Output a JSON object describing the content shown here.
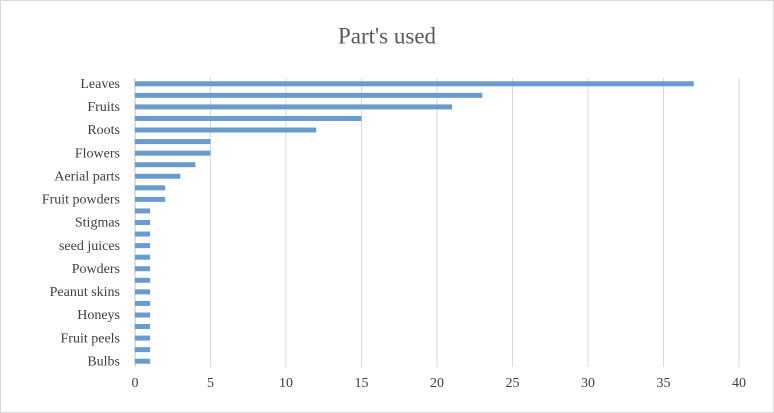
{
  "chart_data": {
    "type": "hbar",
    "title": "Part's used",
    "categories": [
      "Leaves",
      null,
      "Fruits",
      null,
      "Roots",
      null,
      "Flowers",
      null,
      "Aerial parts",
      null,
      "Fruit powders",
      null,
      "Stigmas",
      null,
      "seed juices",
      null,
      "Powders",
      null,
      "Peanut skins",
      null,
      "Honeys",
      null,
      "Fruit peels",
      null,
      "Bulbs"
    ],
    "values": [
      37,
      23,
      21,
      15,
      12,
      5,
      5,
      4,
      3,
      2,
      2,
      1,
      1,
      1,
      1,
      1,
      1,
      1,
      1,
      1,
      1,
      1,
      1,
      1,
      1
    ],
    "color": "#6a9bcf",
    "xlim": [
      0,
      40
    ],
    "xticks": [
      0,
      5,
      10,
      15,
      20,
      25,
      30,
      35,
      40
    ],
    "grid": true
  }
}
